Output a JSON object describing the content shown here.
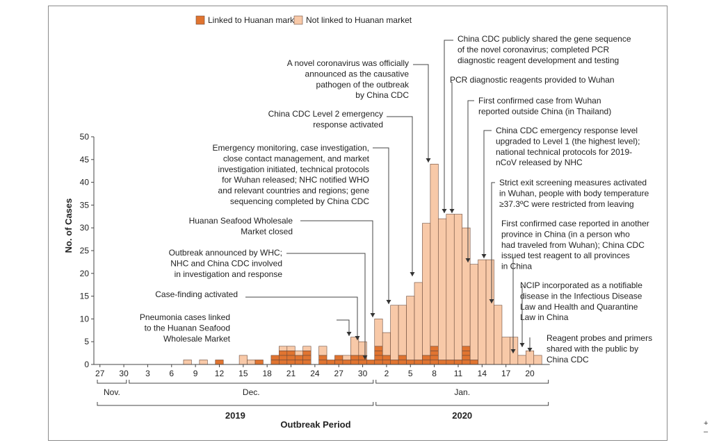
{
  "chart_data": {
    "type": "bar",
    "stacked": true,
    "xlabel": "Outbreak Period",
    "ylabel": "No. of Cases",
    "ylim": [
      0,
      50
    ],
    "yticks": [
      0,
      5,
      10,
      15,
      20,
      25,
      30,
      35,
      40,
      45,
      50
    ],
    "grid": false,
    "legend_position": "top",
    "dates": [
      "Nov 27",
      "Nov 28",
      "Nov 29",
      "Nov 30",
      "Dec 1",
      "Dec 2",
      "Dec 3",
      "Dec 4",
      "Dec 5",
      "Dec 6",
      "Dec 7",
      "Dec 8",
      "Dec 9",
      "Dec 10",
      "Dec 11",
      "Dec 12",
      "Dec 13",
      "Dec 14",
      "Dec 15",
      "Dec 16",
      "Dec 17",
      "Dec 18",
      "Dec 19",
      "Dec 20",
      "Dec 21",
      "Dec 22",
      "Dec 23",
      "Dec 24",
      "Dec 25",
      "Dec 26",
      "Dec 27",
      "Dec 28",
      "Dec 29",
      "Dec 30",
      "Dec 31",
      "Jan 1",
      "Jan 2",
      "Jan 3",
      "Jan 4",
      "Jan 5",
      "Jan 6",
      "Jan 7",
      "Jan 8",
      "Jan 9",
      "Jan 10",
      "Jan 11",
      "Jan 12",
      "Jan 13",
      "Jan 14",
      "Jan 15",
      "Jan 16",
      "Jan 17",
      "Jan 18",
      "Jan 19",
      "Jan 20",
      "Jan 21",
      "Jan 22"
    ],
    "series": [
      {
        "name": "Linked to Huanan market",
        "color": "#e07430",
        "values": [
          0,
          0,
          0,
          0,
          0,
          0,
          0,
          0,
          0,
          0,
          0,
          0,
          0,
          0,
          0,
          1,
          0,
          0,
          0,
          0,
          1,
          0,
          2,
          3,
          3,
          2,
          3,
          0,
          2,
          1,
          2,
          1,
          2,
          2,
          1,
          4,
          2,
          1,
          2,
          1,
          1,
          2,
          4,
          1,
          1,
          1,
          4,
          1,
          0,
          0,
          0,
          0,
          0,
          0,
          0,
          0,
          0
        ]
      },
      {
        "name": "Not linked to Huanan market",
        "color": "#f8c9a8",
        "values": [
          0,
          0,
          0,
          0,
          0,
          0,
          0,
          0,
          0,
          0,
          0,
          1,
          0,
          1,
          0,
          0,
          0,
          0,
          2,
          1,
          0,
          0,
          0,
          1,
          1,
          1,
          1,
          0,
          2,
          0,
          0,
          1,
          4,
          3,
          0,
          6,
          5,
          12,
          11,
          14,
          17,
          29,
          40,
          31,
          32,
          32,
          26,
          21,
          23,
          23,
          13,
          6,
          6,
          2,
          3,
          2,
          0
        ]
      }
    ],
    "x_tick_labels": [
      "27",
      "30",
      "3",
      "6",
      "9",
      "12",
      "15",
      "18",
      "21",
      "24",
      "27",
      "30",
      "2",
      "5",
      "8",
      "11",
      "14",
      "17",
      "20"
    ],
    "month_labels": [
      "Nov.",
      "Dec.",
      "Jan."
    ],
    "year_labels": [
      "2019",
      "2020"
    ],
    "annotations": [
      {
        "date": "Dec 29",
        "lines": [
          "Pneumonia cases linked",
          "to the Huanan Seafood",
          "Wholesale Market"
        ]
      },
      {
        "date": "Dec 30",
        "lines": [
          "Case-finding activated"
        ]
      },
      {
        "date": "Dec 31",
        "lines": [
          "Outbreak announced by WHC;",
          "NHC and China CDC involved",
          "in investigation and response"
        ]
      },
      {
        "date": "Jan 1",
        "lines": [
          "Huanan Seafood Wholesale",
          "Market closed"
        ]
      },
      {
        "date": "Jan 3",
        "lines": [
          "Emergency monitoring, case investigation,",
          "close contact management, and market",
          "investigation initiated, technical protocols",
          "for Wuhan released; NHC notified WHO",
          "and relevant countries and regions; gene",
          "sequencing completed by China CDC"
        ]
      },
      {
        "date": "Jan 6",
        "lines": [
          "China CDC Level 2 emergency",
          "response activated"
        ]
      },
      {
        "date": "Jan 8",
        "lines": [
          "A novel coronavirus was officially",
          "announced as the causative",
          "pathogen of the outbreak",
          "by China CDC"
        ]
      },
      {
        "date": "Jan 10",
        "lines": [
          "China CDC publicly shared the gene sequence",
          "of the novel coronavirus; completed PCR",
          "diagnostic reagent development and testing"
        ]
      },
      {
        "date": "Jan 11",
        "lines": [
          "PCR diagnostic reagents provided to Wuhan"
        ]
      },
      {
        "date": "Jan 13",
        "lines": [
          "First confirmed case from Wuhan",
          "reported outside China (in Thailand)"
        ]
      },
      {
        "date": "Jan 15",
        "lines": [
          "China CDC emergency response level",
          "upgraded to Level 1 (the highest level);",
          "national technical protocols for 2019-",
          "nCoV released by NHC"
        ]
      },
      {
        "date": "Jan 16",
        "lines": [
          "Strict exit screening measures activated",
          "in Wuhan, people with body temperature",
          "≥37.3ºC were restricted from leaving"
        ]
      },
      {
        "date": "Jan 19",
        "lines": [
          "First confirmed case reported in another",
          "province in China (in a person who",
          "had traveled from Wuhan); China CDC",
          "issued test reagent to all provinces",
          "in China"
        ]
      },
      {
        "date": "Jan 20",
        "lines": [
          "NCIP incorporated as a notifiable",
          "disease in the Infectious Disease",
          "Law and Health and Quarantine",
          "Law in China"
        ]
      },
      {
        "date": "Jan 21",
        "lines": [
          "Reagent probes and primers",
          "shared with the public by",
          "China CDC"
        ]
      }
    ]
  },
  "ui": {
    "scroll_glyph": "+",
    "scroll_glyph2": "–"
  }
}
